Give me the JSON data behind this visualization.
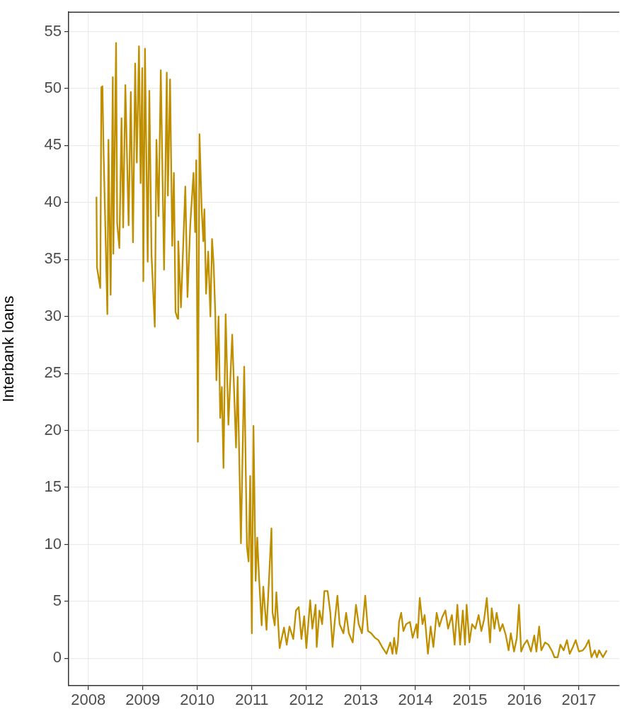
{
  "chart_data": {
    "type": "line",
    "ylabel": "Interbank loans",
    "grid": true,
    "xlim": [
      2007.64,
      2017.74
    ],
    "xticks": [
      2008,
      2009,
      2010,
      2011,
      2012,
      2013,
      2014,
      2015,
      2016,
      2017
    ],
    "ylim": [
      -2.4,
      56.7
    ],
    "yticks": [
      0,
      5,
      10,
      15,
      20,
      25,
      30,
      35,
      40,
      45,
      50,
      55
    ],
    "x": [
      2008.15,
      2008.16,
      2008.22,
      2008.23,
      2008.24,
      2008.26,
      2008.28,
      2008.35,
      2008.37,
      2008.41,
      2008.45,
      2008.46,
      2008.51,
      2008.53,
      2008.57,
      2008.61,
      2008.64,
      2008.68,
      2008.74,
      2008.78,
      2008.82,
      2008.86,
      2008.89,
      2008.93,
      2008.96,
      2008.99,
      2009.01,
      2009.04,
      2009.09,
      2009.12,
      2009.16,
      2009.22,
      2009.25,
      2009.29,
      2009.33,
      2009.39,
      2009.44,
      2009.46,
      2009.5,
      2009.54,
      2009.57,
      2009.6,
      2009.64,
      2009.65,
      2009.7,
      2009.78,
      2009.82,
      2009.87,
      2009.93,
      2009.96,
      2009.98,
      2010.01,
      2010.04,
      2010.08,
      2010.11,
      2010.13,
      2010.16,
      2010.2,
      2010.24,
      2010.27,
      2010.3,
      2010.33,
      2010.35,
      2010.39,
      2010.42,
      2010.45,
      2010.48,
      2010.52,
      2010.57,
      2010.64,
      2010.71,
      2010.74,
      2010.8,
      2010.86,
      2010.91,
      2010.94,
      2010.97,
      2011.0,
      2011.03,
      2011.07,
      2011.1,
      2011.13,
      2011.18,
      2011.21,
      2011.27,
      2011.36,
      2011.38,
      2011.42,
      2011.45,
      2011.49,
      2011.51,
      2011.59,
      2011.64,
      2011.69,
      2011.76,
      2011.81,
      2011.86,
      2011.91,
      2011.96,
      2012.0,
      2012.07,
      2012.11,
      2012.17,
      2012.19,
      2012.24,
      2012.29,
      2012.33,
      2012.39,
      2012.44,
      2012.48,
      2012.52,
      2012.57,
      2012.61,
      2012.68,
      2012.73,
      2012.78,
      2012.85,
      2012.91,
      2012.96,
      2013.02,
      2013.08,
      2013.13,
      2013.19,
      2013.26,
      2013.32,
      2013.39,
      2013.47,
      2013.54,
      2013.58,
      2013.61,
      2013.65,
      2013.68,
      2013.7,
      2013.74,
      2013.78,
      2013.83,
      2013.9,
      2013.95,
      2014.02,
      2014.04,
      2014.08,
      2014.13,
      2014.17,
      2014.23,
      2014.28,
      2014.33,
      2014.39,
      2014.44,
      2014.49,
      2014.55,
      2014.6,
      2014.67,
      2014.72,
      2014.77,
      2014.82,
      2014.87,
      2014.91,
      2014.94,
      2014.99,
      2015.04,
      2015.1,
      2015.16,
      2015.21,
      2015.26,
      2015.31,
      2015.34,
      2015.37,
      2015.4,
      2015.45,
      2015.49,
      2015.55,
      2015.6,
      2015.66,
      2015.71,
      2015.75,
      2015.81,
      2015.86,
      2015.9,
      2015.94,
      2015.99,
      2016.05,
      2016.12,
      2016.18,
      2016.22,
      2016.27,
      2016.31,
      2016.38,
      2016.44,
      2016.51,
      2016.55,
      2016.61,
      2016.66,
      2016.72,
      2016.78,
      2016.83,
      2016.89,
      2016.94,
      2017.0,
      2017.07,
      2017.12,
      2017.18,
      2017.23,
      2017.29,
      2017.33,
      2017.37,
      2017.44,
      2017.51
    ],
    "series": [
      {
        "color": "#bf8f00",
        "values": [
          40.5,
          34.3,
          32.5,
          41.1,
          50.1,
          50.2,
          44.6,
          30.2,
          45.5,
          31.9,
          51.0,
          35.5,
          54.0,
          38.2,
          36.0,
          47.4,
          37.8,
          50.3,
          38.0,
          49.7,
          36.5,
          52.2,
          43.5,
          53.7,
          41.7,
          51.8,
          33.1,
          53.5,
          34.8,
          49.8,
          35.4,
          29.1,
          45.5,
          38.8,
          51.6,
          34.1,
          51.4,
          40.6,
          50.8,
          36.2,
          42.6,
          30.4,
          29.8,
          36.6,
          30.8,
          41.4,
          31.7,
          38.0,
          42.6,
          37.4,
          43.7,
          19.0,
          46.0,
          39.4,
          36.6,
          39.4,
          32.0,
          35.7,
          30.0,
          36.8,
          34.5,
          30.2,
          24.4,
          30.0,
          21.1,
          23.8,
          16.7,
          30.2,
          20.5,
          28.4,
          18.5,
          24.7,
          10.1,
          25.6,
          9.8,
          8.5,
          16.0,
          2.2,
          20.4,
          6.8,
          10.6,
          7.3,
          2.9,
          6.3,
          2.5,
          11.4,
          4.0,
          2.9,
          5.8,
          2.5,
          0.9,
          2.7,
          1.2,
          2.8,
          1.7,
          4.2,
          4.5,
          1.7,
          3.7,
          0.9,
          5.1,
          2.6,
          4.7,
          1.0,
          4.2,
          3.0,
          5.9,
          5.9,
          4.0,
          1.0,
          3.2,
          5.5,
          3.0,
          2.2,
          4.0,
          2.2,
          1.4,
          4.7,
          3.0,
          2.2,
          5.5,
          2.4,
          2.2,
          1.8,
          1.6,
          1.0,
          0.4,
          1.4,
          0.4,
          1.8,
          0.4,
          1.4,
          3.2,
          4.0,
          2.4,
          3.0,
          3.2,
          1.8,
          3.0,
          1.8,
          5.3,
          3.0,
          3.8,
          0.4,
          2.8,
          1.0,
          4.0,
          2.8,
          3.6,
          4.2,
          2.6,
          3.8,
          1.2,
          4.7,
          1.2,
          4.2,
          1.2,
          4.7,
          1.4,
          3.0,
          2.6,
          3.8,
          2.4,
          3.4,
          5.3,
          3.2,
          1.4,
          4.4,
          2.6,
          4.0,
          2.4,
          3.0,
          2.0,
          0.7,
          2.2,
          0.6,
          1.8,
          4.7,
          0.6,
          1.2,
          1.6,
          0.6,
          2.0,
          0.6,
          2.8,
          0.7,
          1.4,
          1.2,
          0.6,
          0.1,
          0.1,
          1.2,
          0.7,
          1.6,
          0.4,
          1.0,
          1.6,
          0.6,
          0.7,
          1.0,
          1.6,
          0.1,
          0.7,
          0.1,
          0.7,
          0.1,
          0.7
        ]
      }
    ]
  }
}
